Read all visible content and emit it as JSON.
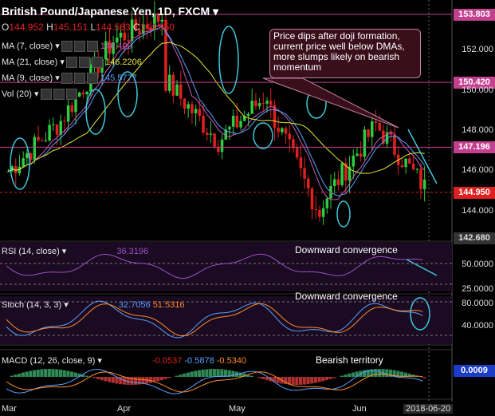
{
  "header": {
    "title": "British Pound/Japanese Yen, 1D, FXCM",
    "ohlc": {
      "o_label": "O",
      "o": "144.952",
      "h_label": "H",
      "h": "145.151",
      "l_label": "L",
      "l": "144.583",
      "c_label": "C",
      "c": "144.950"
    }
  },
  "indicators": [
    {
      "label": "MA (7, close)",
      "value": "146.400",
      "color": "#c85ab4"
    },
    {
      "label": "MA (21, close)",
      "value": "146.2206",
      "color": "#e6e632"
    },
    {
      "label": "MA (9, close)",
      "value": "145.5777",
      "color": "#5aa0ff"
    },
    {
      "label": "Vol (20)",
      "value": "",
      "color": "#dddddd"
    }
  ],
  "annotation": "Price dips after doji formation, current price well below DMAs, more slumps likely on bearish momentum",
  "price_axis": {
    "ticks": [
      "152.000",
      "150.000",
      "148.000",
      "146.000",
      "144.000"
    ],
    "highlighted_levels": [
      {
        "value": "153.803",
        "color": "#c2408e"
      },
      {
        "value": "150.420",
        "color": "#c2408e"
      },
      {
        "value": "147.196",
        "color": "#c2408e"
      },
      {
        "value": "144.950",
        "color": "#e02020"
      },
      {
        "value": "142.680",
        "color": "#222222"
      }
    ]
  },
  "rsi": {
    "label": "RSI (14, close)",
    "value": "36.3196",
    "note": "Downward convergence",
    "ticks": [
      "50.0000",
      "25.0000"
    ]
  },
  "stoch": {
    "label": "Stoch (14, 3, 3)",
    "k": "32.7056",
    "d": "51.5316",
    "note": "Downward convergence",
    "ticks": [
      "80.0000",
      "40.0000"
    ]
  },
  "macd": {
    "label": "MACD (12, 26, close, 9)",
    "hist": "-0.0537",
    "macd": "-0.5878",
    "signal": "-0.5340",
    "note": "Bearish territory",
    "axis_value": "0.0009"
  },
  "x_axis": {
    "labels": [
      "Mar",
      "Apr",
      "May",
      "Jun"
    ],
    "current_date": "2018-06-20"
  },
  "chart_data": {
    "type": "candlestick",
    "title": "British Pound/Japanese Yen, 1D, FXCM",
    "ylim": [
      142.68,
      154.2
    ],
    "segments": [
      {
        "from": "Mar",
        "start": 146.0,
        "end": 148.5
      },
      {
        "from": "Apr",
        "start": 148.5,
        "end": 152.5
      },
      {
        "from": "mid-Apr",
        "start": 152.5,
        "end": 153.8
      },
      {
        "from": "May",
        "start": 150.5,
        "end": 147.5
      },
      {
        "from": "late-May",
        "start": 147.5,
        "end": 150.0
      },
      {
        "from": "early-Jun",
        "start": 149.0,
        "end": 143.5
      },
      {
        "from": "mid-Jun",
        "start": 144.5,
        "end": 148.3
      },
      {
        "from": "2018-06-20",
        "start": 148.3,
        "end": 144.95
      }
    ]
  }
}
